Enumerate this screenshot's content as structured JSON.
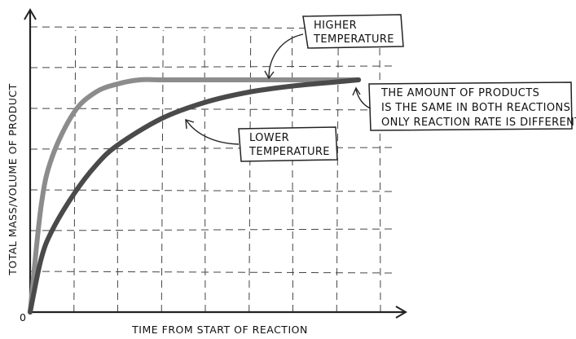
{
  "chart_data": {
    "type": "line",
    "title": "",
    "xlabel": "TIME FROM START OF REACTION",
    "ylabel": "TOTAL MASS/VOLUME OF PRODUCT",
    "origin_label": "0",
    "grid": true,
    "xlim": [
      0,
      8
    ],
    "ylim": [
      0,
      7
    ],
    "series": [
      {
        "name": "HIGHER TEMPERATURE",
        "color": "#8c8c8c",
        "x": [
          0,
          0.25,
          0.5,
          1,
          1.5,
          2,
          2.5,
          3,
          4,
          5,
          6,
          7,
          7.5
        ],
        "y": [
          0,
          2.6,
          3.8,
          4.9,
          5.4,
          5.6,
          5.7,
          5.7,
          5.7,
          5.7,
          5.7,
          5.7,
          5.7
        ]
      },
      {
        "name": "LOWER TEMPERATURE",
        "color": "#4a4a4a",
        "x": [
          0,
          0.25,
          0.5,
          1,
          1.5,
          2,
          3,
          4,
          5,
          6,
          7,
          7.5
        ],
        "y": [
          0,
          1.3,
          2.0,
          2.9,
          3.6,
          4.1,
          4.75,
          5.15,
          5.4,
          5.55,
          5.65,
          5.7
        ]
      }
    ]
  },
  "annotations": {
    "higher_temperature": [
      "HIGHER",
      "TEMPERATURE"
    ],
    "lower_temperature": [
      "LOWER",
      "TEMPERATURE"
    ],
    "note": [
      "THE  AMOUNT  OF  PRODUCTS",
      "IS  THE  SAME  IN  BOTH  REACTIONS",
      "ONLY  REACTION  RATE  IS  DIFFERENT"
    ]
  }
}
